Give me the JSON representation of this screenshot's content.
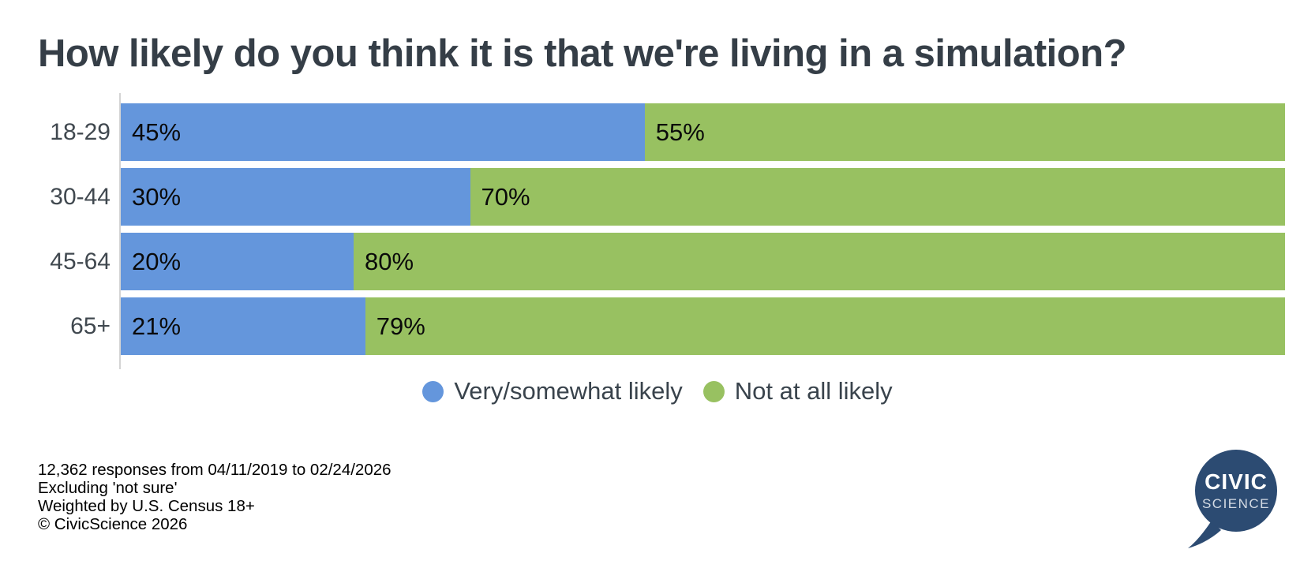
{
  "title": "How likely do you think it is that we're living in a simulation?",
  "chart_data": {
    "type": "bar",
    "stacked": true,
    "orientation": "horizontal",
    "title": "How likely do you think it is that we're living in a simulation?",
    "categories": [
      "18-29",
      "30-44",
      "45-64",
      "65+"
    ],
    "series": [
      {
        "name": "Very/somewhat likely",
        "color": "#6496dc",
        "values": [
          45,
          30,
          20,
          21
        ]
      },
      {
        "name": "Not at all likely",
        "color": "#98c161",
        "values": [
          55,
          70,
          80,
          79
        ]
      }
    ],
    "value_suffix": "%",
    "xlim": [
      0,
      100
    ],
    "grid": false,
    "legend_position": "bottom-center",
    "value_labels": "inside-left"
  },
  "footer": {
    "lines": [
      "12,362 responses from 04/11/2019 to 02/24/2026",
      "Excluding 'not sure'",
      "Weighted by U.S. Census 18+",
      "© CivicScience 2026"
    ]
  },
  "logo": {
    "line1": "CIVIC",
    "line2": "SCIENCE",
    "color": "#2c4b72"
  }
}
